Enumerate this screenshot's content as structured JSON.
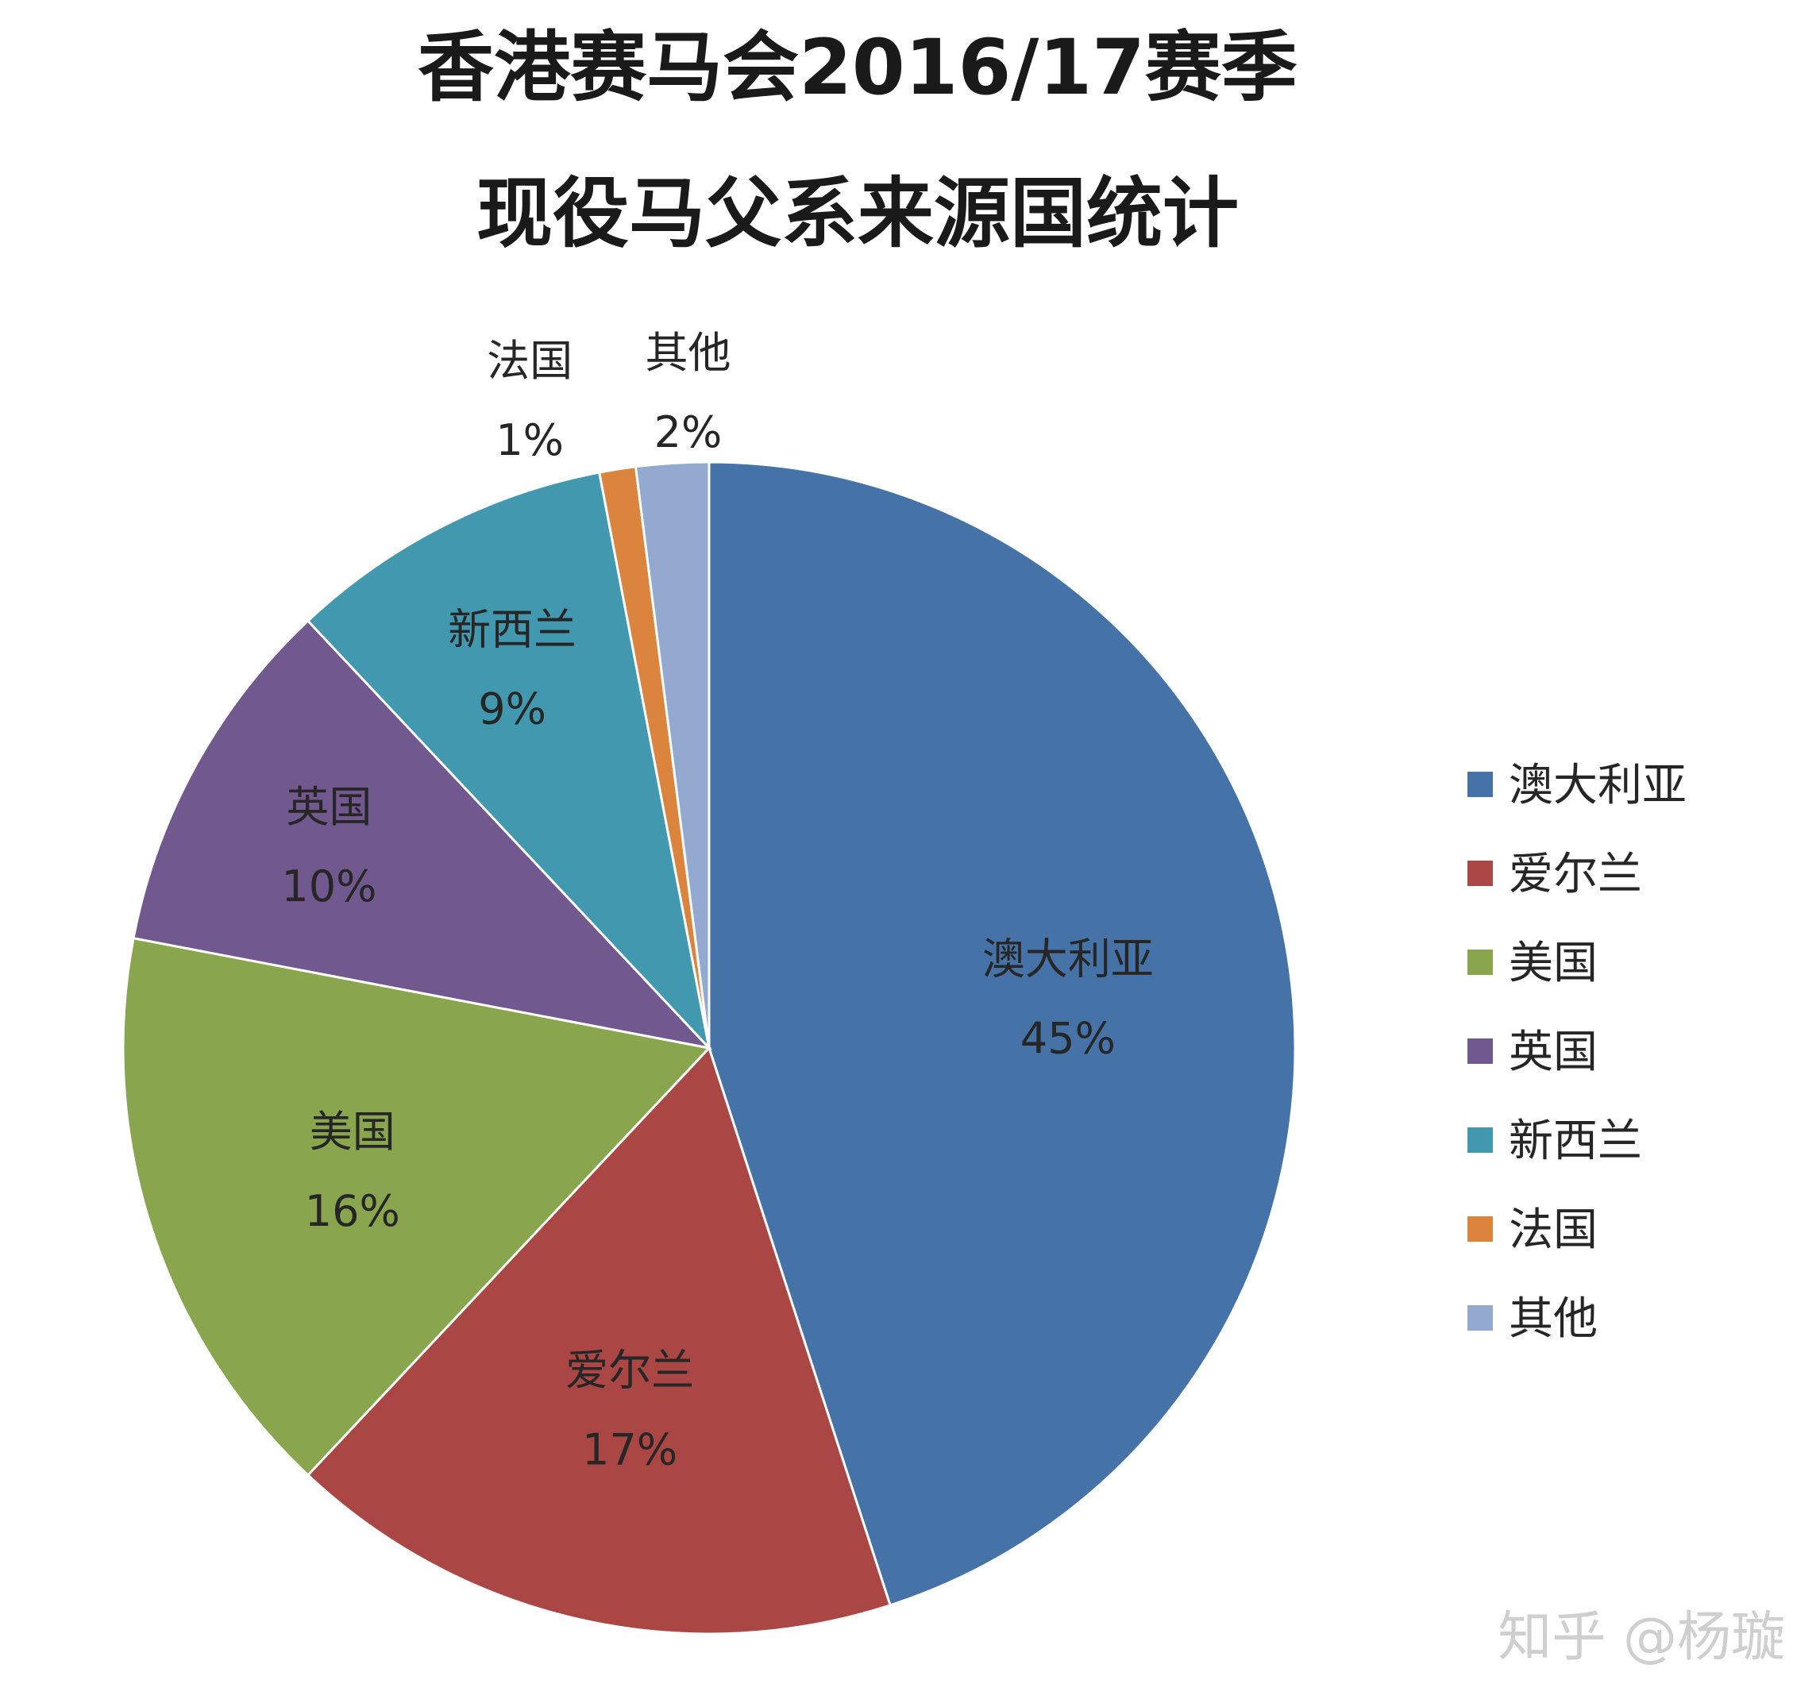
{
  "chart_data": {
    "type": "pie",
    "title": "香港赛马会2016/17赛季",
    "subtitle": "现役马父系来源国统计",
    "legend_position": "right",
    "slices": [
      {
        "label": "澳大利亚",
        "value": 45,
        "display": "45%",
        "color": "#4572a7"
      },
      {
        "label": "爱尔兰",
        "value": 17,
        "display": "17%",
        "color": "#aa4643"
      },
      {
        "label": "美国",
        "value": 16,
        "display": "16%",
        "color": "#89a54e"
      },
      {
        "label": "英国",
        "value": 10,
        "display": "10%",
        "color": "#71588f"
      },
      {
        "label": "新西兰",
        "value": 9,
        "display": "9%",
        "color": "#4198af"
      },
      {
        "label": "法国",
        "value": 1,
        "display": "1%",
        "color": "#db843d"
      },
      {
        "label": "其他",
        "value": 2,
        "display": "2%",
        "color": "#93a9cf"
      }
    ]
  },
  "watermark": "知乎 @杨璇"
}
